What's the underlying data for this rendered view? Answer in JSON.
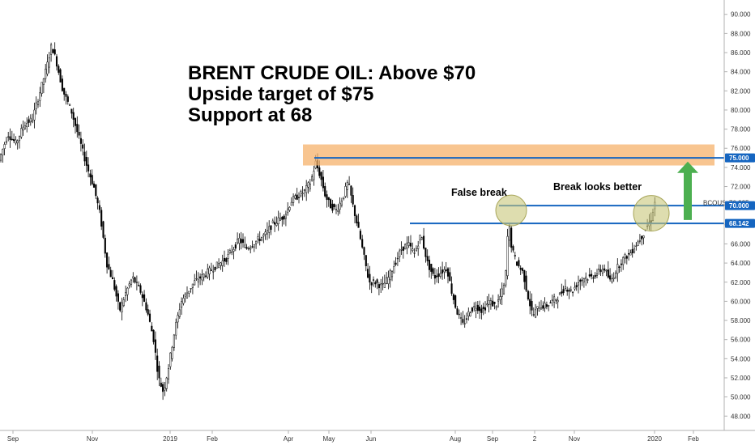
{
  "chart_data": {
    "type": "candlestick",
    "title_lines": [
      "BRENT CRUDE OIL: Above $70",
      "Upside target of $75",
      "Support at 68"
    ],
    "symbol_label": "BCOUSD",
    "ylim": [
      46.5,
      91.5
    ],
    "y_ticks": [
      "48.000",
      "50.000",
      "52.000",
      "54.000",
      "56.000",
      "58.000",
      "60.000",
      "62.000",
      "64.000",
      "66.000",
      "68.000",
      "70.000",
      "72.000",
      "74.000",
      "76.000",
      "78.000",
      "80.000",
      "82.000",
      "84.000",
      "86.000",
      "88.000",
      "90.000"
    ],
    "x_tick_labels": [
      "Sep",
      "Nov",
      "2019",
      "Feb",
      "Apr",
      "May",
      "Jun",
      "Aug",
      "Sep",
      "2",
      "Nov",
      "2020",
      "Feb"
    ],
    "price_tags": [
      {
        "label": "75.000",
        "value": 75.0,
        "color": "#1565c0"
      },
      {
        "label": "70.325",
        "value": 70.325,
        "color": "#ffffff"
      },
      {
        "label": "70.000",
        "value": 70.0,
        "color": "#1565c0"
      },
      {
        "label": "68.142",
        "value": 68.142,
        "color": "#1565c0"
      }
    ],
    "price_path": [
      [
        0,
        74.5
      ],
      [
        12,
        77.5
      ],
      [
        22,
        76.5
      ],
      [
        32,
        78.5
      ],
      [
        42,
        79.0
      ],
      [
        52,
        82.0
      ],
      [
        60,
        84.5
      ],
      [
        66,
        86.8
      ],
      [
        72,
        85.0
      ],
      [
        80,
        82.0
      ],
      [
        90,
        80.0
      ],
      [
        100,
        77.0
      ],
      [
        110,
        74.0
      ],
      [
        118,
        72.0
      ],
      [
        126,
        69.0
      ],
      [
        134,
        64.0
      ],
      [
        142,
        62.0
      ],
      [
        150,
        59.0
      ],
      [
        158,
        61.0
      ],
      [
        166,
        62.5
      ],
      [
        176,
        61.0
      ],
      [
        184,
        59.0
      ],
      [
        192,
        56.0
      ],
      [
        198,
        52.0
      ],
      [
        204,
        50.5
      ],
      [
        210,
        53.0
      ],
      [
        218,
        57.0
      ],
      [
        226,
        60.0
      ],
      [
        234,
        61.0
      ],
      [
        242,
        62.0
      ],
      [
        250,
        62.5
      ],
      [
        258,
        63.0
      ],
      [
        266,
        63.5
      ],
      [
        274,
        64.0
      ],
      [
        282,
        64.5
      ],
      [
        290,
        65.5
      ],
      [
        298,
        66.5
      ],
      [
        306,
        65.5
      ],
      [
        314,
        66.0
      ],
      [
        322,
        66.5
      ],
      [
        330,
        67.0
      ],
      [
        338,
        68.0
      ],
      [
        346,
        68.5
      ],
      [
        354,
        69.0
      ],
      [
        362,
        70.5
      ],
      [
        370,
        71.0
      ],
      [
        378,
        71.5
      ],
      [
        386,
        72.5
      ],
      [
        392,
        74.5
      ],
      [
        398,
        73.0
      ],
      [
        404,
        71.0
      ],
      [
        410,
        70.0
      ],
      [
        418,
        69.5
      ],
      [
        426,
        71.0
      ],
      [
        432,
        72.5
      ],
      [
        438,
        70.0
      ],
      [
        446,
        67.0
      ],
      [
        452,
        64.5
      ],
      [
        458,
        62.0
      ],
      [
        466,
        62.0
      ],
      [
        474,
        61.5
      ],
      [
        482,
        62.5
      ],
      [
        490,
        64.0
      ],
      [
        498,
        65.5
      ],
      [
        506,
        66.0
      ],
      [
        514,
        65.0
      ],
      [
        522,
        67.0
      ],
      [
        530,
        64.0
      ],
      [
        538,
        62.5
      ],
      [
        546,
        63.0
      ],
      [
        554,
        63.5
      ],
      [
        560,
        61.0
      ],
      [
        566,
        59.0
      ],
      [
        574,
        57.5
      ],
      [
        582,
        59.0
      ],
      [
        590,
        59.5
      ],
      [
        598,
        59.0
      ],
      [
        606,
        60.0
      ],
      [
        614,
        59.5
      ],
      [
        620,
        60.5
      ],
      [
        626,
        62.0
      ],
      [
        630,
        68.5
      ],
      [
        634,
        65.5
      ],
      [
        640,
        64.0
      ],
      [
        648,
        63.0
      ],
      [
        654,
        60.5
      ],
      [
        660,
        58.5
      ],
      [
        668,
        59.5
      ],
      [
        676,
        59.5
      ],
      [
        684,
        60.0
      ],
      [
        692,
        60.5
      ],
      [
        700,
        61.5
      ],
      [
        708,
        61.0
      ],
      [
        716,
        62.0
      ],
      [
        724,
        62.5
      ],
      [
        732,
        62.5
      ],
      [
        740,
        63.0
      ],
      [
        748,
        63.5
      ],
      [
        756,
        62.0
      ],
      [
        764,
        63.5
      ],
      [
        772,
        64.5
      ],
      [
        780,
        65.0
      ],
      [
        788,
        66.0
      ],
      [
        796,
        67.0
      ],
      [
        802,
        68.0
      ],
      [
        806,
        68.5
      ],
      [
        810,
        70.3
      ]
    ],
    "markers": {
      "resistance_zone": [
        74.2,
        76.4
      ],
      "target_line": 75.0,
      "break_line": 70.0,
      "support_line": 68.142,
      "false_break_circle_value": 69.5,
      "break_circle_value": 69.2,
      "arrow_range": [
        68.5,
        74.6
      ]
    },
    "annotations": [
      "False break",
      "Break looks better"
    ],
    "grid": false,
    "colors": {
      "candle": "#000000",
      "support_lines": "#1565c0",
      "zone": "#f6b26b",
      "circle": "#c8c67a",
      "arrow": "#4caf50"
    }
  }
}
